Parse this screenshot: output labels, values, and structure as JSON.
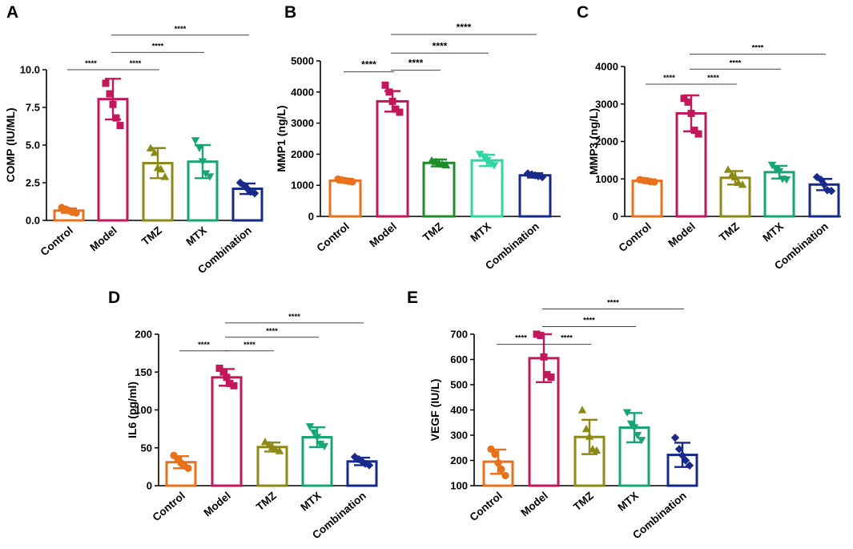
{
  "colors": {
    "groups": [
      "#e9711c",
      "#c2185b",
      "#8c8a17",
      "#17a574",
      "#172a8c"
    ],
    "panel_B_groups": [
      "#e9711c",
      "#c2185b",
      "#1f8c2a",
      "#2fd6a2",
      "#172a8c"
    ]
  },
  "chart_data": [
    {
      "panel": "A",
      "type": "bar",
      "categories": [
        "Control",
        "Model",
        "TMZ",
        "MTX",
        "Combination"
      ],
      "ylabel": "COMP (IU/ML)",
      "ylim": [
        0,
        10
      ],
      "yticks": [
        "0.0",
        "2.5",
        "5.0",
        "7.5",
        "10.0"
      ],
      "means": [
        0.65,
        8.05,
        3.8,
        3.9,
        2.1
      ],
      "sd": [
        0.15,
        1.35,
        1.0,
        1.1,
        0.35
      ],
      "points": [
        [
          0.85,
          0.75,
          0.65,
          0.55,
          0.5
        ],
        [
          9.1,
          8.4,
          7.7,
          6.8,
          6.3
        ],
        [
          4.8,
          4.5,
          3.5,
          3.4,
          2.9
        ],
        [
          5.3,
          4.8,
          3.9,
          3.1,
          2.9
        ],
        [
          2.5,
          2.3,
          2.1,
          1.9,
          1.8
        ]
      ],
      "markers": [
        "circle",
        "square",
        "triangle",
        "triangle-down",
        "diamond"
      ],
      "comparisons": [
        {
          "from": "Control",
          "to": "Model",
          "y": 10.0,
          "label": "****"
        },
        {
          "from": "Model",
          "to": "TMZ",
          "y": 10.0,
          "label": "****"
        },
        {
          "from": "Model",
          "to": "MTX",
          "y": 11.15,
          "label": "****"
        },
        {
          "from": "Model",
          "to": "Combination",
          "y": 12.3,
          "label": "****"
        }
      ]
    },
    {
      "panel": "B",
      "type": "bar",
      "categories": [
        "Control",
        "Model",
        "TMZ",
        "MTX",
        "Combination"
      ],
      "ylabel": "MMP1 (ng/L)",
      "ylim": [
        0,
        5000
      ],
      "yticks": [
        "0",
        "1000",
        "2000",
        "3000",
        "4000",
        "5000"
      ],
      "means": [
        1150,
        3700,
        1720,
        1800,
        1320
      ],
      "sd": [
        60,
        330,
        110,
        180,
        70
      ],
      "points": [
        [
          1200,
          1170,
          1150,
          1130,
          1110
        ],
        [
          4220,
          4000,
          3700,
          3450,
          3350
        ],
        [
          1800,
          1760,
          1720,
          1680,
          1650
        ],
        [
          2000,
          1920,
          1800,
          1700,
          1640
        ],
        [
          1380,
          1350,
          1320,
          1290,
          1260
        ]
      ],
      "markers": [
        "circle",
        "square",
        "triangle",
        "triangle-down",
        "diamond"
      ],
      "comparisons": [
        {
          "from": "Control",
          "to": "Model",
          "y": 4650,
          "label": "****"
        },
        {
          "from": "Model",
          "to": "TMZ",
          "y": 4700,
          "label": "****"
        },
        {
          "from": "Model",
          "to": "MTX",
          "y": 5250,
          "label": "****"
        },
        {
          "from": "Model",
          "to": "Combination",
          "y": 5850,
          "label": "****"
        }
      ]
    },
    {
      "panel": "C",
      "type": "bar",
      "categories": [
        "Control",
        "Model",
        "TMZ",
        "MTX",
        "Combination"
      ],
      "ylabel": "MMP3 (ng/L)",
      "ylim": [
        0,
        4000
      ],
      "yticks": [
        "0",
        "1000",
        "2000",
        "3000",
        "4000"
      ],
      "means": [
        950,
        2750,
        1030,
        1180,
        850
      ],
      "sd": [
        30,
        480,
        180,
        170,
        150
      ],
      "points": [
        [
          980,
          960,
          950,
          930,
          920
        ],
        [
          3150,
          3050,
          2750,
          2300,
          2200
        ],
        [
          1250,
          1120,
          1050,
          900,
          850
        ],
        [
          1370,
          1250,
          1200,
          1000,
          980
        ],
        [
          1050,
          980,
          850,
          700,
          680
        ]
      ],
      "markers": [
        "circle",
        "square",
        "triangle",
        "triangle-down",
        "diamond"
      ],
      "comparisons": [
        {
          "from": "Control",
          "to": "Model",
          "y": 3530,
          "label": "****"
        },
        {
          "from": "Model",
          "to": "TMZ",
          "y": 3530,
          "label": "****"
        },
        {
          "from": "Model",
          "to": "MTX",
          "y": 3930,
          "label": "****"
        },
        {
          "from": "Model",
          "to": "Combination",
          "y": 4330,
          "label": "****"
        }
      ]
    },
    {
      "panel": "D",
      "type": "bar",
      "categories": [
        "Control",
        "Model",
        "TMZ",
        "MTX",
        "Combination"
      ],
      "ylabel": "IL6 (pg/ml)",
      "ylim": [
        0,
        200
      ],
      "yticks": [
        "0",
        "50",
        "100",
        "150",
        "200"
      ],
      "means": [
        31,
        143,
        51,
        64,
        32
      ],
      "sd": [
        8,
        11,
        6,
        13,
        5
      ],
      "points": [
        [
          40,
          35,
          30,
          26,
          23
        ],
        [
          155,
          150,
          143,
          135,
          132
        ],
        [
          58,
          54,
          51,
          48,
          46
        ],
        [
          78,
          70,
          64,
          55,
          52
        ],
        [
          38,
          35,
          32,
          29,
          27
        ]
      ],
      "markers": [
        "circle",
        "square",
        "triangle",
        "triangle-down",
        "diamond"
      ],
      "comparisons": [
        {
          "from": "Control",
          "to": "Model",
          "y": 178,
          "label": "****"
        },
        {
          "from": "Model",
          "to": "TMZ",
          "y": 178,
          "label": "****"
        },
        {
          "from": "Model",
          "to": "MTX",
          "y": 196,
          "label": "****"
        },
        {
          "from": "Model",
          "to": "Combination",
          "y": 215,
          "label": "****"
        }
      ]
    },
    {
      "panel": "E",
      "type": "bar",
      "categories": [
        "Control",
        "Model",
        "TMZ",
        "MTX",
        "Combination"
      ],
      "ylabel": "VEGF (IU/L)",
      "ylim": [
        100,
        700
      ],
      "yticks": [
        "100",
        "200",
        "300",
        "400",
        "500",
        "600",
        "700"
      ],
      "means": [
        195,
        605,
        293,
        330,
        222
      ],
      "sd": [
        48,
        95,
        68,
        58,
        48
      ],
      "points": [
        [
          245,
          225,
          190,
          165,
          140
        ],
        [
          700,
          695,
          610,
          540,
          530
        ],
        [
          400,
          325,
          295,
          245,
          240
        ],
        [
          390,
          345,
          330,
          300,
          280
        ],
        [
          290,
          245,
          220,
          200,
          180
        ]
      ],
      "markers": [
        "circle",
        "square",
        "triangle",
        "triangle-down",
        "diamond"
      ],
      "comparisons": [
        {
          "from": "Control",
          "to": "Model",
          "y": 660,
          "label": "****"
        },
        {
          "from": "Model",
          "to": "TMZ",
          "y": 660,
          "label": "****"
        },
        {
          "from": "Model",
          "to": "MTX",
          "y": 730,
          "label": "****"
        },
        {
          "from": "Model",
          "to": "Combination",
          "y": 800,
          "label": "****"
        }
      ]
    }
  ]
}
